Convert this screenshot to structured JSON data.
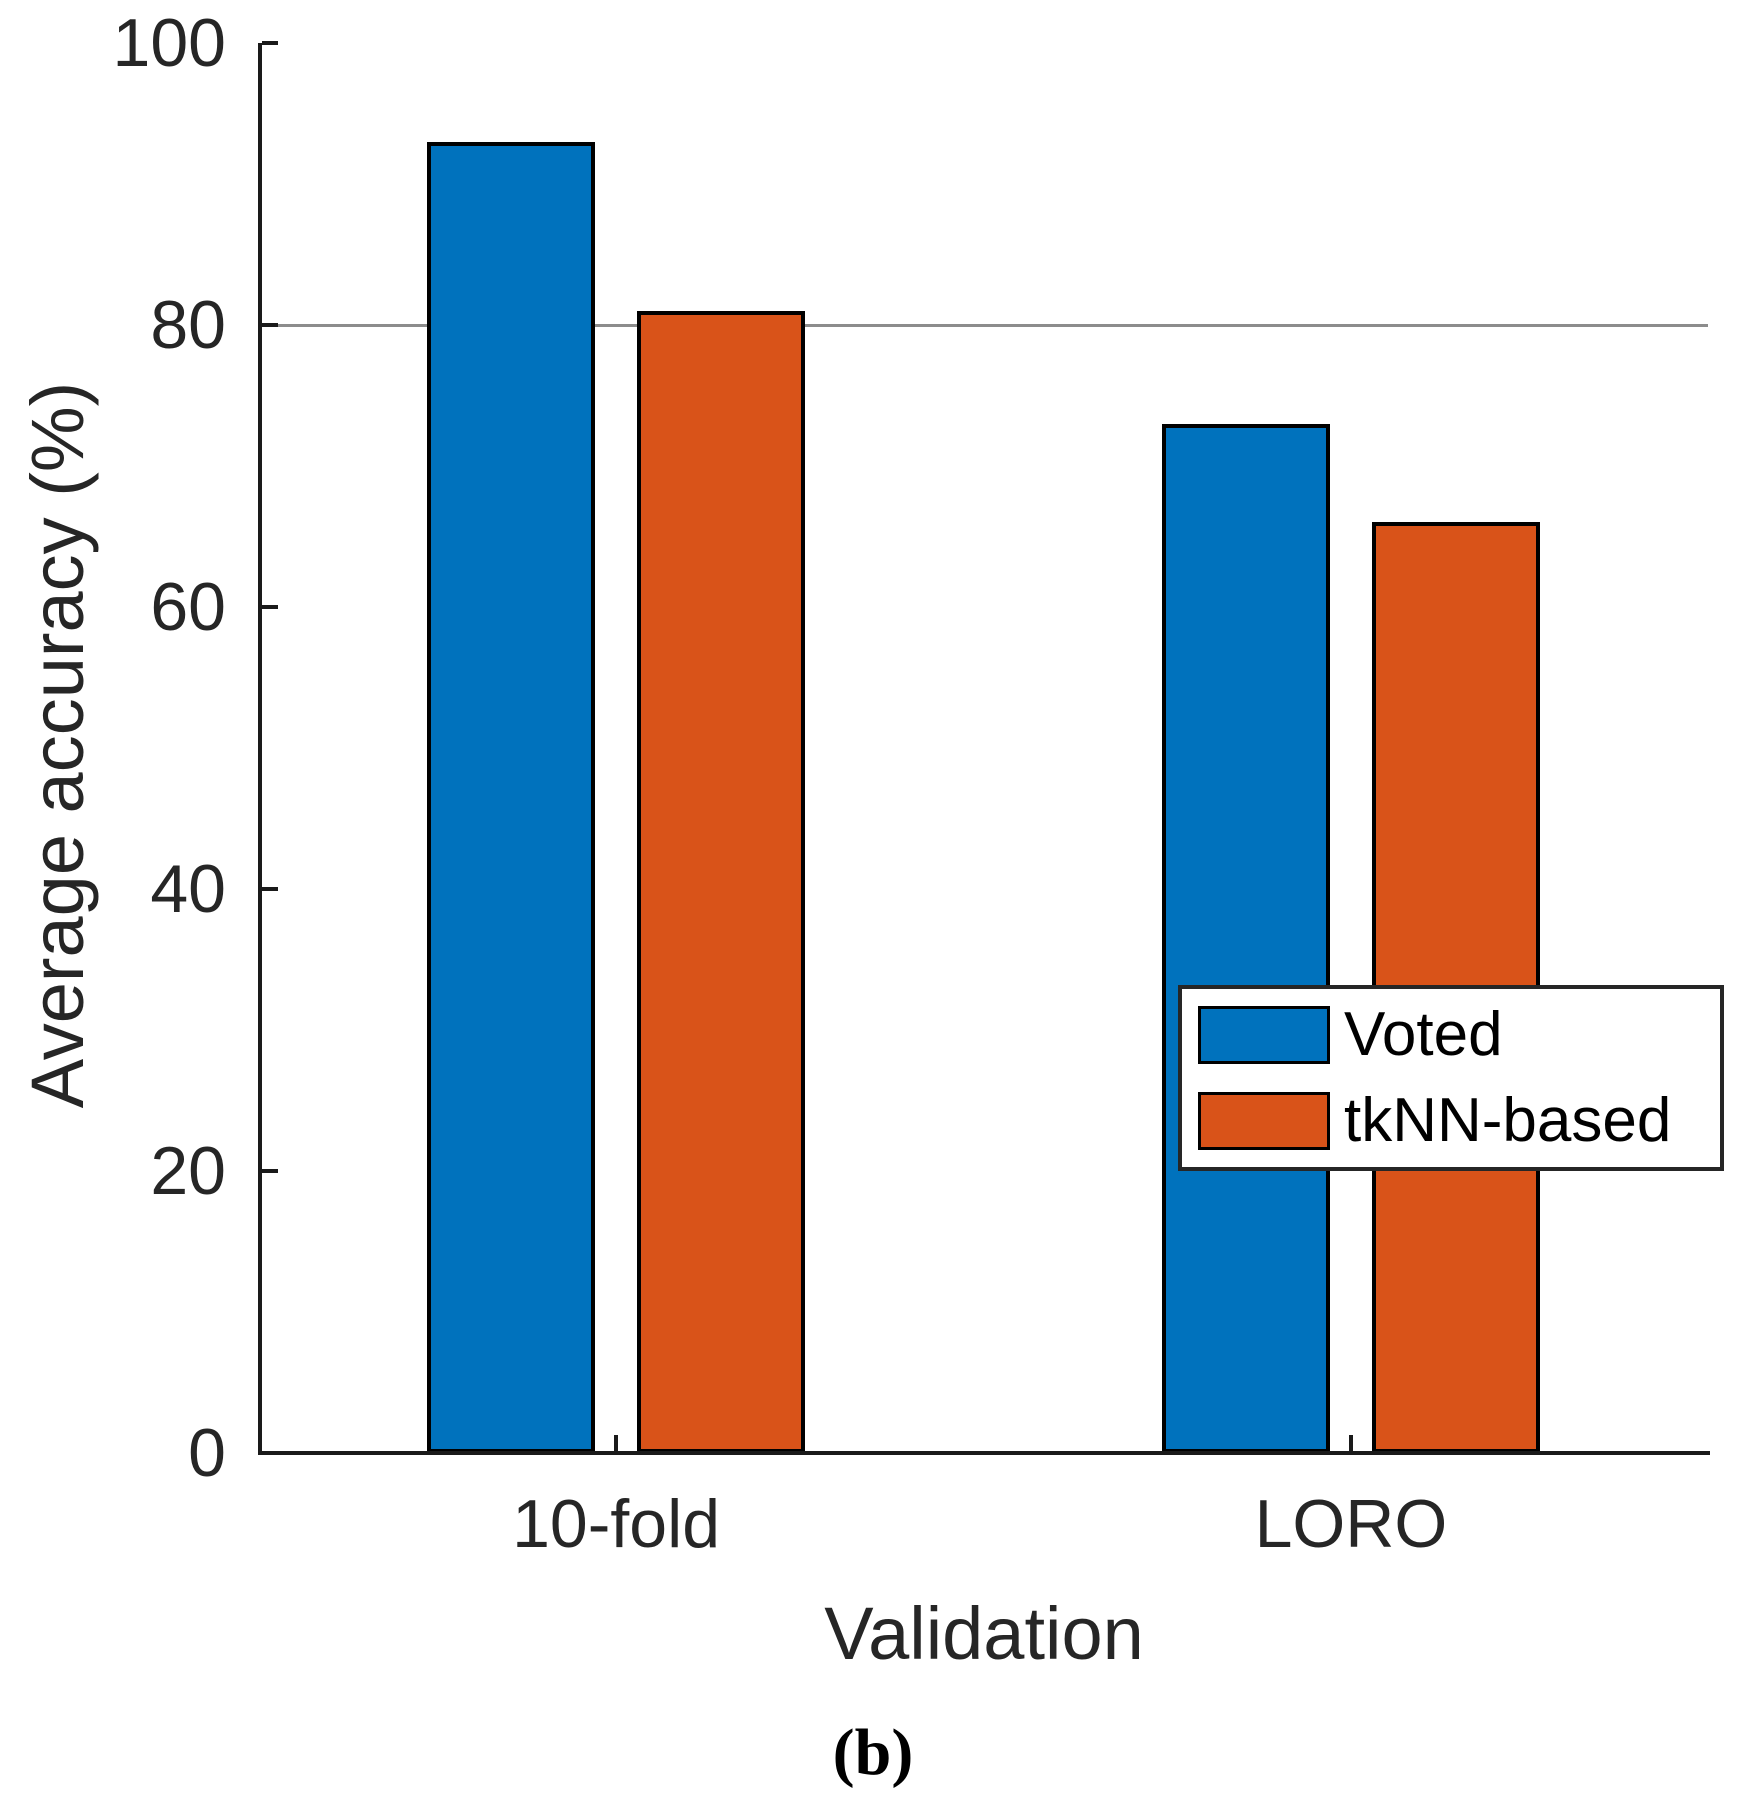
{
  "figure": {
    "caption": "(b)"
  },
  "chart_data": {
    "type": "bar",
    "categories": [
      "10-fold",
      "LORO"
    ],
    "series": [
      {
        "name": "Voted",
        "color": "#0072BD",
        "values": [
          93,
          73
        ]
      },
      {
        "name": "tkNN-based",
        "color": "#D95319",
        "values": [
          81,
          66
        ]
      }
    ],
    "reference_line_y": 80,
    "title": "",
    "xlabel": "Validation",
    "ylabel": "Average accuracy (%)",
    "ylim": [
      0,
      100
    ],
    "yticks": [
      0,
      20,
      40,
      60,
      80,
      100
    ],
    "grid": false,
    "legend_position": "middle-right",
    "colors": {
      "bar_edge": "#000000",
      "axis": "#1a1a1a",
      "text": "#262626",
      "reference_line": "#8c8c8c",
      "background": "#ffffff"
    }
  }
}
